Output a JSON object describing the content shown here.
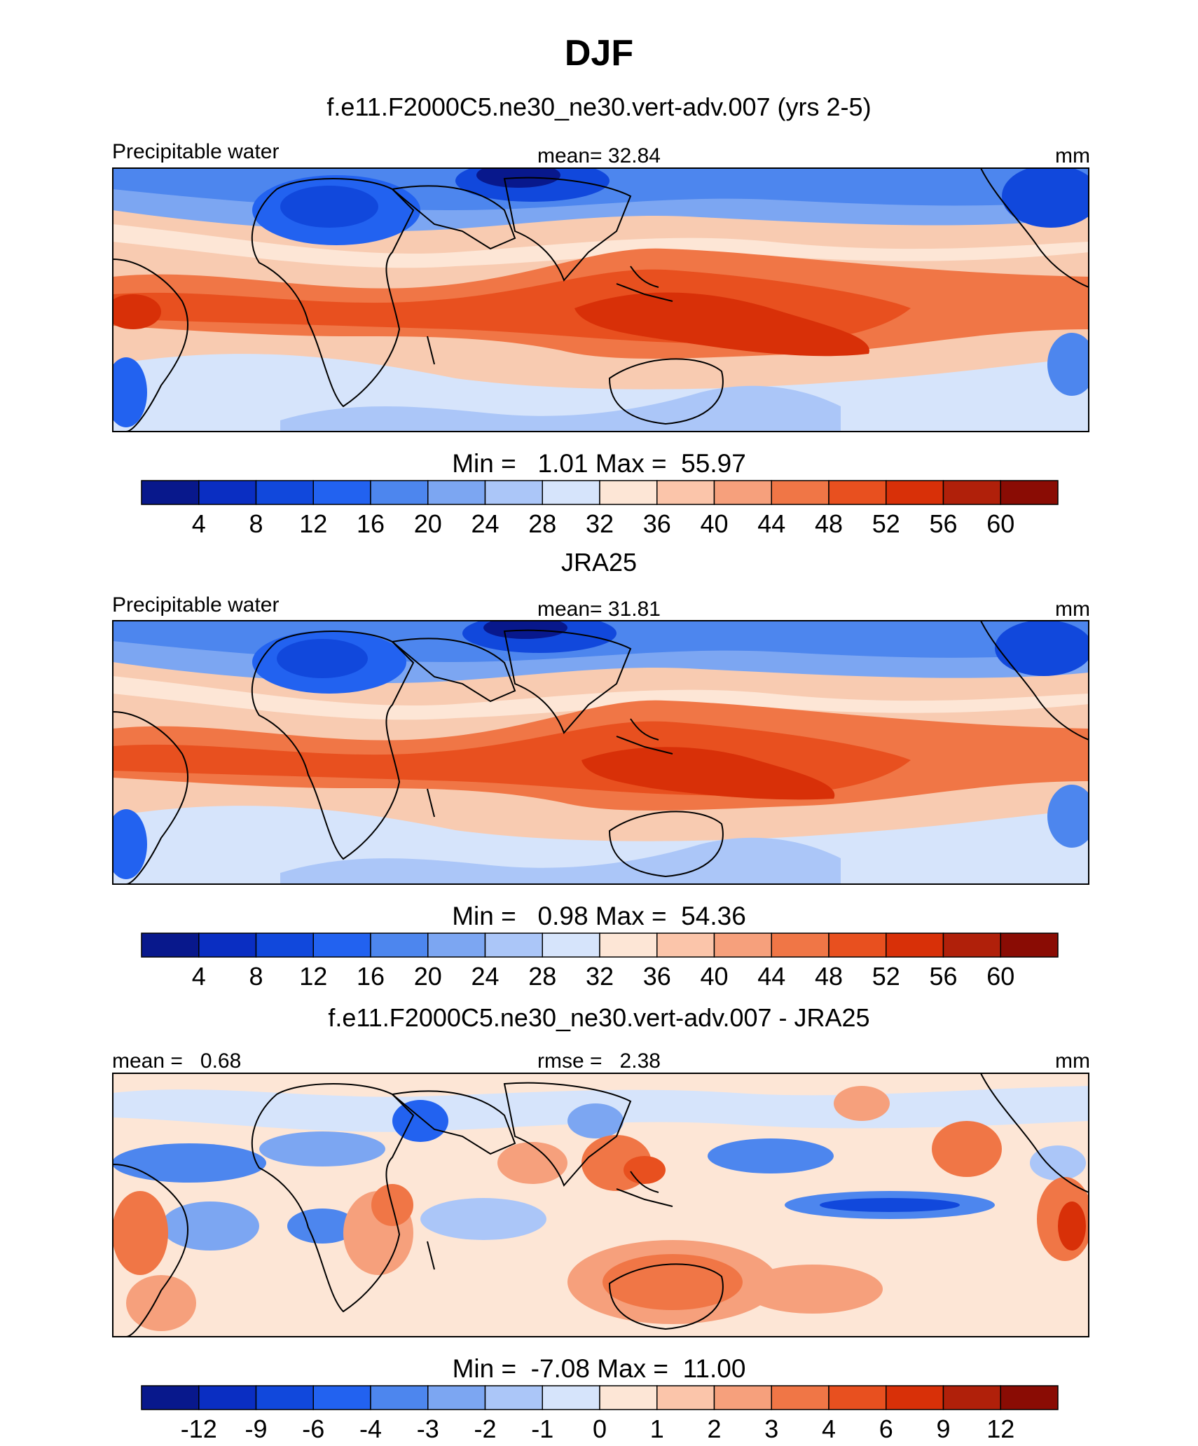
{
  "figure_title": "DJF",
  "chart_data": [
    {
      "type": "heatmap",
      "title": "f.e11.F2000C5.ne30_ne30.vert-adv.007 (yrs 2-5)",
      "left_label": "Precipitable water",
      "center_label": "mean=  32.84",
      "right_label": "mm",
      "variable": "Precipitable water",
      "units": "mm",
      "mean": 32.84,
      "min": 1.01,
      "max": 55.97,
      "minmax_label": "Min =   1.01 Max =  55.97",
      "colorbar_ticks": [
        "4",
        "8",
        "12",
        "16",
        "20",
        "24",
        "28",
        "32",
        "36",
        "40",
        "44",
        "48",
        "52",
        "56",
        "60"
      ]
    },
    {
      "type": "heatmap",
      "title": "JRA25",
      "left_label": "Precipitable water",
      "center_label": "mean=  31.81",
      "right_label": "mm",
      "variable": "Precipitable water",
      "units": "mm",
      "mean": 31.81,
      "min": 0.98,
      "max": 54.36,
      "minmax_label": "Min =   0.98 Max =  54.36",
      "colorbar_ticks": [
        "4",
        "8",
        "12",
        "16",
        "20",
        "24",
        "28",
        "32",
        "36",
        "40",
        "44",
        "48",
        "52",
        "56",
        "60"
      ]
    },
    {
      "type": "heatmap",
      "title": "f.e11.F2000C5.ne30_ne30.vert-adv.007 - JRA25",
      "left_label": "mean =   0.68",
      "center_label": "rmse =   2.38",
      "right_label": "mm",
      "units": "mm",
      "mean": 0.68,
      "rmse": 2.38,
      "min": -7.08,
      "max": 11.0,
      "minmax_label": "Min =  -7.08 Max =  11.00",
      "colorbar_ticks": [
        "-12",
        "-9",
        "-6",
        "-4",
        "-3",
        "-2",
        "-1",
        "0",
        "1",
        "2",
        "3",
        "4",
        "6",
        "9",
        "12"
      ]
    }
  ],
  "colors": {
    "palette": [
      "#08188c",
      "#0a2ec2",
      "#1148dc",
      "#2262f0",
      "#4d86ee",
      "#7ca6f2",
      "#abc6f8",
      "#d6e4fb",
      "#fde6d6",
      "#fbc5aa",
      "#f6a07c",
      "#f07646",
      "#e8501f",
      "#d83008",
      "#b0200a",
      "#8a0c04"
    ]
  }
}
